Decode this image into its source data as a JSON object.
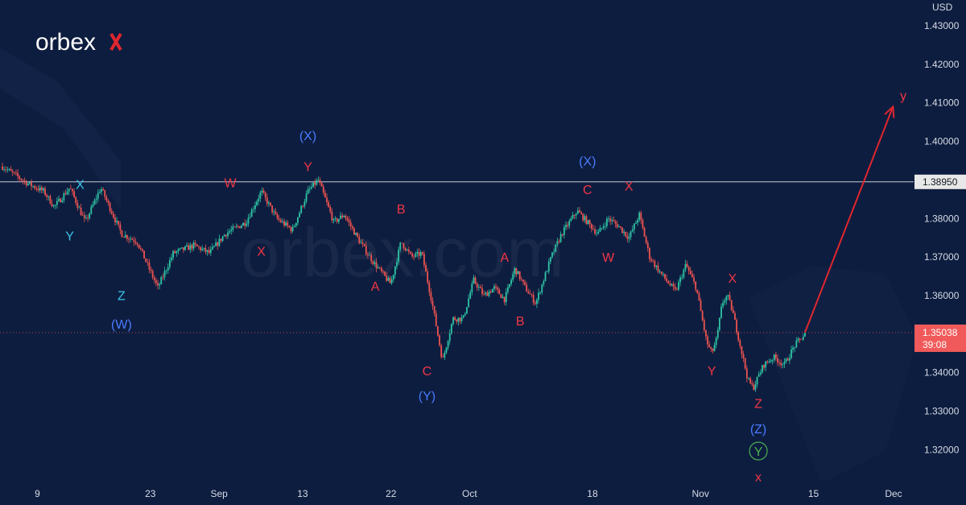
{
  "brand": {
    "logo_text": "orbex",
    "watermark_text": "orbex.com"
  },
  "colors": {
    "background": "#0d1d3f",
    "candle_up": "#2ec4a5",
    "candle_down": "#ef5350",
    "wave_red": "#f23645",
    "wave_blue": "#4a7bff",
    "wave_cyan": "#3bc3e6",
    "wave_green": "#4caf50",
    "arrow": "#e0262e",
    "price_label_bg": "#f05a5a",
    "level_label_bg": "#e8e8e8"
  },
  "chart_data": {
    "type": "candlestick",
    "instrument_currency": "USD",
    "x_tick_labels": [
      "9",
      "23",
      "Sep",
      "13",
      "22",
      "Oct",
      "18",
      "Nov",
      "15",
      "Dec"
    ],
    "y_ticks": [
      "1.43000",
      "1.42000",
      "1.41000",
      "1.40000",
      "1.38000",
      "1.37000",
      "1.36000",
      "1.34000",
      "1.33000",
      "1.32000"
    ],
    "ylim": [
      1.3117,
      1.4367
    ],
    "horizontal_level": {
      "value": 1.3895,
      "label": "1.38950"
    },
    "current_price": {
      "value": 1.35038,
      "label": "1.35038",
      "countdown": "39:08"
    },
    "price_path": [
      [
        0,
        1.3935
      ],
      [
        5,
        1.389
      ],
      [
        8,
        1.387
      ],
      [
        10,
        1.383
      ],
      [
        13,
        1.388
      ],
      [
        16,
        1.379
      ],
      [
        19,
        1.388
      ],
      [
        23,
        1.376
      ],
      [
        26,
        1.374
      ],
      [
        30,
        1.362
      ],
      [
        33,
        1.371
      ],
      [
        37,
        1.373
      ],
      [
        40,
        1.371
      ],
      [
        43,
        1.376
      ],
      [
        47,
        1.379
      ],
      [
        50,
        1.387
      ],
      [
        53,
        1.38
      ],
      [
        56,
        1.377
      ],
      [
        59,
        1.387
      ],
      [
        61,
        1.39
      ],
      [
        64,
        1.379
      ],
      [
        66,
        1.381
      ],
      [
        69,
        1.374
      ],
      [
        72,
        1.368
      ],
      [
        75,
        1.363
      ],
      [
        77,
        1.374
      ],
      [
        79,
        1.37
      ],
      [
        81,
        1.371
      ],
      [
        83,
        1.358
      ],
      [
        85,
        1.343
      ],
      [
        87,
        1.354
      ],
      [
        89,
        1.354
      ],
      [
        91,
        1.364
      ],
      [
        93,
        1.36
      ],
      [
        95,
        1.362
      ],
      [
        97,
        1.359
      ],
      [
        99,
        1.367
      ],
      [
        101,
        1.362
      ],
      [
        103,
        1.358
      ],
      [
        106,
        1.37
      ],
      [
        108,
        1.376
      ],
      [
        111,
        1.382
      ],
      [
        113,
        1.379
      ],
      [
        115,
        1.376
      ],
      [
        117,
        1.38
      ],
      [
        119,
        1.378
      ],
      [
        121,
        1.375
      ],
      [
        123,
        1.381
      ],
      [
        125,
        1.37
      ],
      [
        127,
        1.366
      ],
      [
        130,
        1.361
      ],
      [
        132,
        1.368
      ],
      [
        134,
        1.362
      ],
      [
        136,
        1.348
      ],
      [
        137,
        1.345
      ],
      [
        138,
        1.349
      ],
      [
        139,
        1.358
      ],
      [
        140,
        1.36
      ],
      [
        141,
        1.356
      ],
      [
        143,
        1.344
      ],
      [
        144,
        1.338
      ],
      [
        145,
        1.336
      ],
      [
        147,
        1.342
      ],
      [
        149,
        1.344
      ],
      [
        151,
        1.342
      ],
      [
        153,
        1.347
      ],
      [
        155,
        1.35
      ]
    ],
    "projection": {
      "from": [
        155,
        1.3504
      ],
      "to": [
        172,
        1.409
      ],
      "label": "y"
    },
    "wave_labels": [
      {
        "text": "X",
        "x": 15,
        "price": 1.3879,
        "color": "cyan"
      },
      {
        "text": "Y",
        "x": 13,
        "price": 1.3745,
        "color": "cyan"
      },
      {
        "text": "Z",
        "x": 23,
        "price": 1.359,
        "color": "cyan"
      },
      {
        "text": "(W)",
        "x": 23,
        "price": 1.3516,
        "color": "blue"
      },
      {
        "text": "W",
        "x": 44,
        "price": 1.3883,
        "color": "red"
      },
      {
        "text": "X",
        "x": 50,
        "price": 1.3705,
        "color": "red"
      },
      {
        "text": "(X)",
        "x": 59,
        "price": 1.4005,
        "color": "blue"
      },
      {
        "text": "Y",
        "x": 59,
        "price": 1.3925,
        "color": "red"
      },
      {
        "text": "B",
        "x": 77,
        "price": 1.3815,
        "color": "red"
      },
      {
        "text": "A",
        "x": 72,
        "price": 1.3615,
        "color": "red"
      },
      {
        "text": "C",
        "x": 82,
        "price": 1.3395,
        "color": "red"
      },
      {
        "text": "(Y)",
        "x": 82,
        "price": 1.333,
        "color": "blue"
      },
      {
        "text": "A",
        "x": 97,
        "price": 1.369,
        "color": "red"
      },
      {
        "text": "B",
        "x": 100,
        "price": 1.3525,
        "color": "red"
      },
      {
        "text": "(X)",
        "x": 113,
        "price": 1.394,
        "color": "blue"
      },
      {
        "text": "C",
        "x": 113,
        "price": 1.3865,
        "color": "red"
      },
      {
        "text": "X",
        "x": 121,
        "price": 1.3875,
        "color": "red"
      },
      {
        "text": "W",
        "x": 117,
        "price": 1.369,
        "color": "red"
      },
      {
        "text": "X",
        "x": 141,
        "price": 1.3635,
        "color": "red"
      },
      {
        "text": "Y",
        "x": 137,
        "price": 1.3395,
        "color": "red"
      },
      {
        "text": "Z",
        "x": 146,
        "price": 1.331,
        "color": "red"
      },
      {
        "text": "(Z)",
        "x": 146,
        "price": 1.3245,
        "color": "blue"
      },
      {
        "text": "Y",
        "x": 146,
        "price": 1.3186,
        "color": "green",
        "circled": true
      },
      {
        "text": "x",
        "x": 146,
        "price": 1.312,
        "color": "red"
      },
      {
        "text": "y",
        "x": 174,
        "price": 1.411,
        "color": "red"
      }
    ]
  }
}
